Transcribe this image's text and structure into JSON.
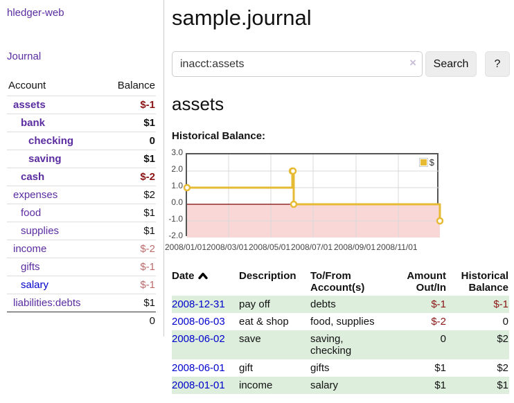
{
  "colors": {
    "purple_link": "#5a2ca0",
    "blue_link": "#0000cc",
    "negative": "#8b1414",
    "negative_muted": "#bd6b6b",
    "stripe_green": "#ddeedd",
    "gold": "#e7ba34",
    "pink_negative_region": "#f9d7d7",
    "zero_line": "#7c0000",
    "grid": "#d9d9d9",
    "plot_border": "#545454"
  },
  "sidebar": {
    "app_title": "hledger-web",
    "journal_link": "Journal",
    "accounts_table": {
      "headers": {
        "account": "Account",
        "balance": "Balance"
      },
      "rows": [
        {
          "account": "assets",
          "balance": "$-1",
          "depth": 1,
          "bold": true,
          "balance_style": "negative"
        },
        {
          "account": "bank",
          "balance": "$1",
          "depth": 2,
          "bold": true,
          "balance_style": "normal"
        },
        {
          "account": "checking",
          "balance": "0",
          "depth": 3,
          "bold": true,
          "balance_style": "normal"
        },
        {
          "account": "saving",
          "balance": "$1",
          "depth": 3,
          "bold": true,
          "balance_style": "normal"
        },
        {
          "account": "cash",
          "balance": "$-2",
          "depth": 2,
          "bold": true,
          "balance_style": "negative"
        },
        {
          "account": "expenses",
          "balance": "$2",
          "depth": 1,
          "bold": false,
          "balance_style": "normal"
        },
        {
          "account": "food",
          "balance": "$1",
          "depth": 2,
          "bold": false,
          "balance_style": "normal"
        },
        {
          "account": "supplies",
          "balance": "$1",
          "depth": 2,
          "bold": false,
          "balance_style": "normal"
        },
        {
          "account": "income",
          "balance": "$-2",
          "depth": 1,
          "bold": false,
          "balance_style": "negative_muted"
        },
        {
          "account": "gifts",
          "balance": "$-1",
          "depth": 2,
          "bold": false,
          "balance_style": "negative_muted"
        },
        {
          "account": "salary",
          "balance": "$-1",
          "depth": 2,
          "bold": false,
          "balance_style": "negative_muted",
          "link_color": "blue"
        },
        {
          "account": "liabilities:debts",
          "balance": "$1",
          "depth": 1,
          "bold": false,
          "balance_style": "normal"
        }
      ],
      "total": "0"
    }
  },
  "header": {
    "title": "sample.journal"
  },
  "search": {
    "value": "inacct:assets",
    "clear_icon": "×",
    "search_label": "Search",
    "help_label": "?"
  },
  "account_page": {
    "heading": "assets",
    "chart_title": "Historical Balance:"
  },
  "chart_data": {
    "type": "line",
    "line_style": "step-after",
    "title": "Historical Balance",
    "legend": "$",
    "legend_position": "top-right",
    "x_range": [
      "2008-01-01",
      "2008-12-31"
    ],
    "ylim": [
      -2,
      3
    ],
    "y_ticks": [
      "3.0",
      "2.0",
      "1.0",
      "0.0",
      "-1.0",
      "-2.0"
    ],
    "x_ticks": [
      "2008/01/01",
      "2008/03/01",
      "2008/05/01",
      "2008/07/01",
      "2008/09/01",
      "2008/11/01"
    ],
    "series": [
      {
        "name": "$",
        "points": [
          {
            "date": "2008-01-01",
            "value": 1
          },
          {
            "date": "2008-06-01",
            "value": 2
          },
          {
            "date": "2008-06-02",
            "value": 2
          },
          {
            "date": "2008-06-03",
            "value": 0
          },
          {
            "date": "2008-12-31",
            "value": -1
          }
        ]
      }
    ],
    "grid": true,
    "negative_region_shaded": true
  },
  "register": {
    "headers": {
      "date": "Date",
      "description": "Description",
      "accounts": "To/From Account(s)",
      "amount": "Amount Out/In",
      "balance": "Historical Balance"
    },
    "sort_column": "date",
    "sort_direction": "ascending",
    "rows": [
      {
        "date": "2008-12-31",
        "description": "pay off",
        "accounts": "debts",
        "amount": "$-1",
        "amount_negative": true,
        "balance": "$-1",
        "balance_negative": true
      },
      {
        "date": "2008-06-03",
        "description": "eat & shop",
        "accounts": "food, supplies",
        "amount": "$-2",
        "amount_negative": true,
        "balance": "0",
        "balance_negative": false
      },
      {
        "date": "2008-06-02",
        "description": "save",
        "accounts": "saving, checking",
        "amount": "0",
        "amount_negative": false,
        "balance": "$2",
        "balance_negative": false
      },
      {
        "date": "2008-06-01",
        "description": "gift",
        "accounts": "gifts",
        "amount": "$1",
        "amount_negative": false,
        "balance": "$2",
        "balance_negative": false
      },
      {
        "date": "2008-01-01",
        "description": "income",
        "accounts": "salary",
        "amount": "$1",
        "amount_negative": false,
        "balance": "$1",
        "balance_negative": false
      }
    ]
  }
}
